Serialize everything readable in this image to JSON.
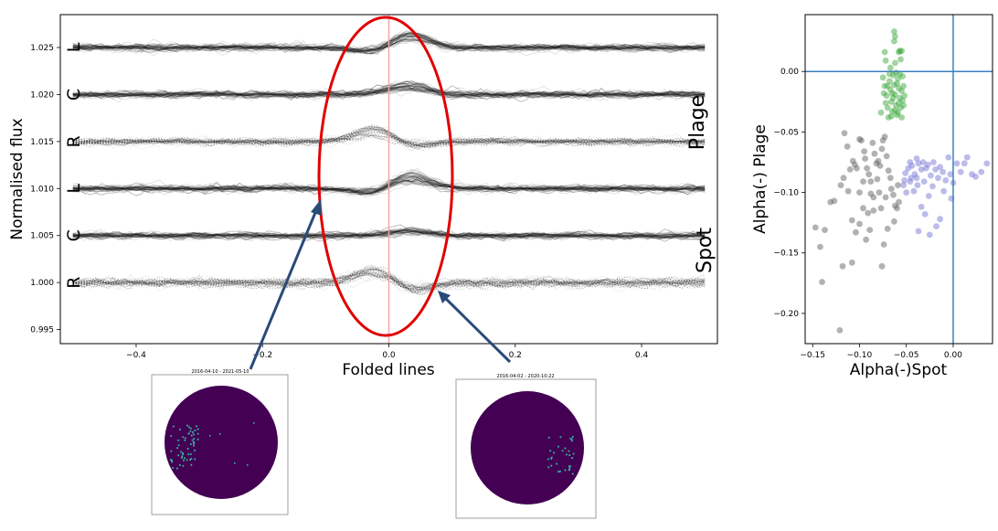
{
  "chart_data": [
    {
      "type": "line",
      "xlabel": "Folded lines",
      "ylabel": "Normalised flux",
      "xlim": [
        -0.52,
        0.52
      ],
      "ylim": [
        0.9935,
        1.0285
      ],
      "xticks": [
        -0.4,
        -0.2,
        0.0,
        0.2,
        0.4
      ],
      "yticks": [
        0.995,
        1.0,
        1.005,
        1.01,
        1.015,
        1.02,
        1.025
      ],
      "xtick_labels": [
        "−0.4",
        "−0.2",
        "0.0",
        "0.2",
        "0.4"
      ],
      "ytick_labels": [
        "0.995",
        "1.000",
        "1.005",
        "1.010",
        "1.015",
        "1.020",
        "1.025"
      ],
      "vertical_line": {
        "x": 0.0,
        "color": "#f4a6a6"
      },
      "highlight_ellipse": {
        "center_x": 0.0,
        "center_y": 1.0105,
        "color": "#e00000"
      },
      "series": [
        {
          "label": "L",
          "group": "Plage",
          "baseline": 1.025,
          "dip_before": -0.0005,
          "bump_after": 0.0012,
          "scatter": 0.0009,
          "style": "solid"
        },
        {
          "label": "C",
          "group": "Plage",
          "baseline": 1.02,
          "dip_before": 0.0,
          "bump_after": 0.0009,
          "scatter": 0.0009,
          "style": "solid"
        },
        {
          "label": "R",
          "group": "Plage",
          "baseline": 1.015,
          "dip_before": 0.0012,
          "bump_after": -0.0005,
          "scatter": 0.001,
          "style": "dotted"
        },
        {
          "label": "L",
          "group": "Spot",
          "baseline": 1.01,
          "dip_before": -0.0005,
          "bump_after": 0.0012,
          "scatter": 0.0009,
          "style": "solid"
        },
        {
          "label": "C",
          "group": "Spot",
          "baseline": 1.005,
          "dip_before": 0.0,
          "bump_after": 0.0004,
          "scatter": 0.0008,
          "style": "solid"
        },
        {
          "label": "R",
          "group": "Spot",
          "baseline": 1.0,
          "dip_before": 0.0012,
          "bump_after": -0.0008,
          "scatter": 0.0012,
          "style": "dotted"
        }
      ],
      "group_labels": [
        "Plage",
        "Spot"
      ]
    },
    {
      "type": "scatter",
      "xlabel": "Alpha(-)Spot",
      "ylabel": "Alpha(-) Plage",
      "xlim": [
        -0.158,
        0.042
      ],
      "ylim": [
        -0.225,
        0.047
      ],
      "xticks": [
        -0.15,
        -0.1,
        -0.05,
        0.0
      ],
      "yticks": [
        0.0,
        -0.05,
        -0.1,
        -0.15,
        -0.2
      ],
      "xtick_labels": [
        "−0.15",
        "−0.10",
        "−0.05",
        "0.00"
      ],
      "ytick_labels": [
        "0.00",
        "−0.05",
        "−0.10",
        "−0.15",
        "−0.20"
      ],
      "reference_lines": {
        "x": 0.0,
        "y": 0.0,
        "color": "#3b80c0"
      },
      "series": [
        {
          "color": "#2ca02c",
          "points": [
            [
              -0.073,
              0.016
            ],
            [
              -0.072,
              0.009
            ],
            [
              -0.067,
              0.003
            ],
            [
              -0.063,
              0.033
            ],
            [
              -0.063,
              0.025
            ],
            [
              -0.062,
              0.029
            ],
            [
              -0.062,
              0.007
            ],
            [
              -0.061,
              -0.001
            ],
            [
              -0.058,
              0.016
            ],
            [
              -0.057,
              0.017
            ],
            [
              -0.056,
              0.01
            ],
            [
              -0.055,
              0.017
            ],
            [
              -0.075,
              -0.005
            ],
            [
              -0.073,
              -0.012
            ],
            [
              -0.071,
              -0.02
            ],
            [
              -0.07,
              -0.03
            ],
            [
              -0.069,
              -0.038
            ],
            [
              -0.068,
              -0.008
            ],
            [
              -0.067,
              -0.015
            ],
            [
              -0.066,
              -0.025
            ],
            [
              -0.065,
              -0.033
            ],
            [
              -0.064,
              -0.003
            ],
            [
              -0.063,
              -0.011
            ],
            [
              -0.062,
              -0.019
            ],
            [
              -0.061,
              -0.028
            ],
            [
              -0.06,
              -0.036
            ],
            [
              -0.059,
              -0.006
            ],
            [
              -0.058,
              -0.014
            ],
            [
              -0.057,
              -0.022
            ],
            [
              -0.056,
              -0.03
            ],
            [
              -0.055,
              -0.038
            ],
            [
              -0.054,
              -0.004
            ],
            [
              -0.053,
              -0.012
            ],
            [
              -0.052,
              -0.02
            ],
            [
              -0.072,
              -0.026
            ],
            [
              -0.068,
              -0.002
            ],
            [
              -0.065,
              -0.018
            ],
            [
              -0.062,
              -0.032
            ],
            [
              -0.06,
              -0.01
            ],
            [
              -0.058,
              -0.026
            ],
            [
              -0.055,
              -0.016
            ],
            [
              -0.053,
              -0.028
            ],
            [
              -0.077,
              -0.034
            ],
            [
              -0.074,
              -0.018
            ],
            [
              -0.07,
              -0.012
            ],
            [
              -0.066,
              -0.037
            ],
            [
              -0.064,
              -0.022
            ],
            [
              -0.059,
              -0.034
            ],
            [
              -0.057,
              -0.002
            ],
            [
              -0.054,
              -0.024
            ]
          ]
        },
        {
          "color": "#555555",
          "points": [
            [
              -0.116,
              -0.051
            ],
            [
              -0.113,
              -0.062
            ],
            [
              -0.107,
              -0.074
            ],
            [
              -0.105,
              -0.077
            ],
            [
              -0.103,
              -0.08
            ],
            [
              -0.1,
              -0.056
            ],
            [
              -0.098,
              -0.057
            ],
            [
              -0.095,
              -0.066
            ],
            [
              -0.094,
              -0.072
            ],
            [
              -0.092,
              -0.08
            ],
            [
              -0.09,
              -0.085
            ],
            [
              -0.088,
              -0.091
            ],
            [
              -0.086,
              -0.059
            ],
            [
              -0.084,
              -0.068
            ],
            [
              -0.082,
              -0.076
            ],
            [
              -0.08,
              -0.074
            ],
            [
              -0.078,
              -0.078
            ],
            [
              -0.076,
              -0.064
            ],
            [
              -0.075,
              -0.057
            ],
            [
              -0.073,
              -0.054
            ],
            [
              -0.071,
              -0.07
            ],
            [
              -0.069,
              -0.082
            ],
            [
              -0.067,
              -0.088
            ],
            [
              -0.066,
              -0.097
            ],
            [
              -0.064,
              -0.102
            ],
            [
              -0.062,
              -0.111
            ],
            [
              -0.06,
              -0.113
            ],
            [
              -0.059,
              -0.094
            ],
            [
              -0.058,
              -0.108
            ],
            [
              -0.063,
              -0.124
            ],
            [
              -0.07,
              -0.13
            ],
            [
              -0.079,
              -0.1
            ],
            [
              -0.085,
              -0.104
            ],
            [
              -0.091,
              -0.117
            ],
            [
              -0.096,
              -0.113
            ],
            [
              -0.1,
              -0.126
            ],
            [
              -0.104,
              -0.133
            ],
            [
              -0.108,
              -0.123
            ],
            [
              -0.112,
              -0.099
            ],
            [
              -0.117,
              -0.088
            ],
            [
              -0.12,
              -0.094
            ],
            [
              -0.127,
              -0.107
            ],
            [
              -0.131,
              -0.108
            ],
            [
              -0.137,
              -0.131
            ],
            [
              -0.147,
              -0.129
            ],
            [
              -0.142,
              -0.145
            ],
            [
              -0.14,
              -0.174
            ],
            [
              -0.121,
              -0.214
            ],
            [
              -0.118,
              -0.161
            ],
            [
              -0.108,
              -0.158
            ],
            [
              -0.093,
              -0.139
            ],
            [
              -0.089,
              -0.131
            ],
            [
              -0.076,
              -0.161
            ],
            [
              -0.074,
              -0.143
            ],
            [
              -0.085,
              -0.115
            ],
            [
              -0.096,
              -0.091
            ],
            [
              -0.11,
              -0.081
            ],
            [
              -0.1,
              -0.1
            ],
            [
              -0.088,
              -0.101
            ],
            [
              -0.081,
              -0.089
            ],
            [
              -0.077,
              -0.113
            ],
            [
              -0.072,
              -0.104
            ]
          ]
        },
        {
          "color": "#6a6ad0",
          "points": [
            [
              -0.051,
              -0.084
            ],
            [
              -0.048,
              -0.08
            ],
            [
              -0.046,
              -0.075
            ],
            [
              -0.044,
              -0.078
            ],
            [
              -0.041,
              -0.085
            ],
            [
              -0.039,
              -0.072
            ],
            [
              -0.037,
              -0.076
            ],
            [
              -0.034,
              -0.081
            ],
            [
              -0.032,
              -0.075
            ],
            [
              -0.029,
              -0.08
            ],
            [
              -0.027,
              -0.077
            ],
            [
              -0.024,
              -0.086
            ],
            [
              -0.021,
              -0.075
            ],
            [
              -0.019,
              -0.081
            ],
            [
              -0.016,
              -0.088
            ],
            [
              -0.014,
              -0.079
            ],
            [
              -0.011,
              -0.083
            ],
            [
              -0.008,
              -0.09
            ],
            [
              -0.005,
              -0.071
            ],
            [
              -0.003,
              -0.085
            ],
            [
              0.0,
              -0.092
            ],
            [
              0.004,
              -0.076
            ],
            [
              0.008,
              -0.083
            ],
            [
              0.012,
              -0.076
            ],
            [
              0.015,
              -0.071
            ],
            [
              0.02,
              -0.085
            ],
            [
              0.024,
              -0.087
            ],
            [
              0.03,
              -0.083
            ],
            [
              0.036,
              -0.076
            ],
            [
              -0.053,
              -0.094
            ],
            [
              -0.05,
              -0.1
            ],
            [
              -0.046,
              -0.091
            ],
            [
              -0.042,
              -0.099
            ],
            [
              -0.038,
              -0.094
            ],
            [
              -0.034,
              -0.112
            ],
            [
              -0.03,
              -0.118
            ],
            [
              -0.026,
              -0.103
            ],
            [
              -0.022,
              -0.095
            ],
            [
              -0.018,
              -0.128
            ],
            [
              -0.014,
              -0.122
            ],
            [
              -0.037,
              -0.132
            ],
            [
              -0.025,
              -0.135
            ],
            [
              -0.01,
              -0.099
            ],
            [
              -0.002,
              -0.105
            ],
            [
              -0.052,
              -0.09
            ],
            [
              -0.045,
              -0.088
            ],
            [
              -0.039,
              -0.088
            ],
            [
              -0.031,
              -0.091
            ]
          ]
        }
      ]
    }
  ],
  "insets": [
    {
      "title": "2016-04-10 - 2021-05-10",
      "disk_color": "#440154",
      "dot_color": "#35b5a0"
    },
    {
      "title": "2016-04-02 - 2020-10-22",
      "disk_color": "#440154",
      "dot_color": "#35b5a0"
    }
  ],
  "arrow_color": "#2a4a78"
}
